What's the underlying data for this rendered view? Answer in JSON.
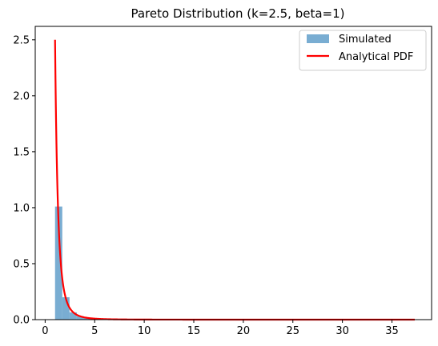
{
  "chart_data": {
    "type": "bar+line",
    "title": "Pareto Distribution (k=2.5, beta=1)",
    "xlabel": "",
    "ylabel": "",
    "xlim": [
      -1,
      39
    ],
    "ylim": [
      0,
      2.62
    ],
    "xticks": [
      0,
      5,
      10,
      15,
      20,
      25,
      30,
      35
    ],
    "yticks": [
      0.0,
      0.5,
      1.0,
      1.5,
      2.0,
      2.5
    ],
    "xtick_labels": [
      "0",
      "5",
      "10",
      "15",
      "20",
      "25",
      "30",
      "35"
    ],
    "ytick_labels": [
      "0.0",
      "0.5",
      "1.0",
      "1.5",
      "2.0",
      "2.5"
    ],
    "grid": false,
    "legend_position": "top-right",
    "histogram": {
      "name": "Simulated",
      "color": "#1f77b4",
      "opacity": 0.6,
      "bin_edges": [
        1.0,
        1.73,
        2.46,
        3.19,
        3.92,
        4.65,
        5.38,
        6.11,
        6.84,
        7.57,
        8.3,
        9.03,
        9.76,
        10.49,
        11.22,
        11.95
      ],
      "values": [
        1.01,
        0.2,
        0.065,
        0.03,
        0.016,
        0.009,
        0.005,
        0.003,
        0.002,
        0.002,
        0.001,
        0.001,
        0.001,
        0.0005,
        0.0005
      ]
    },
    "curve": {
      "name": "Analytical PDF",
      "color": "#ff0000",
      "k": 2.5,
      "beta": 1,
      "x_range": [
        1,
        37.3
      ]
    }
  }
}
